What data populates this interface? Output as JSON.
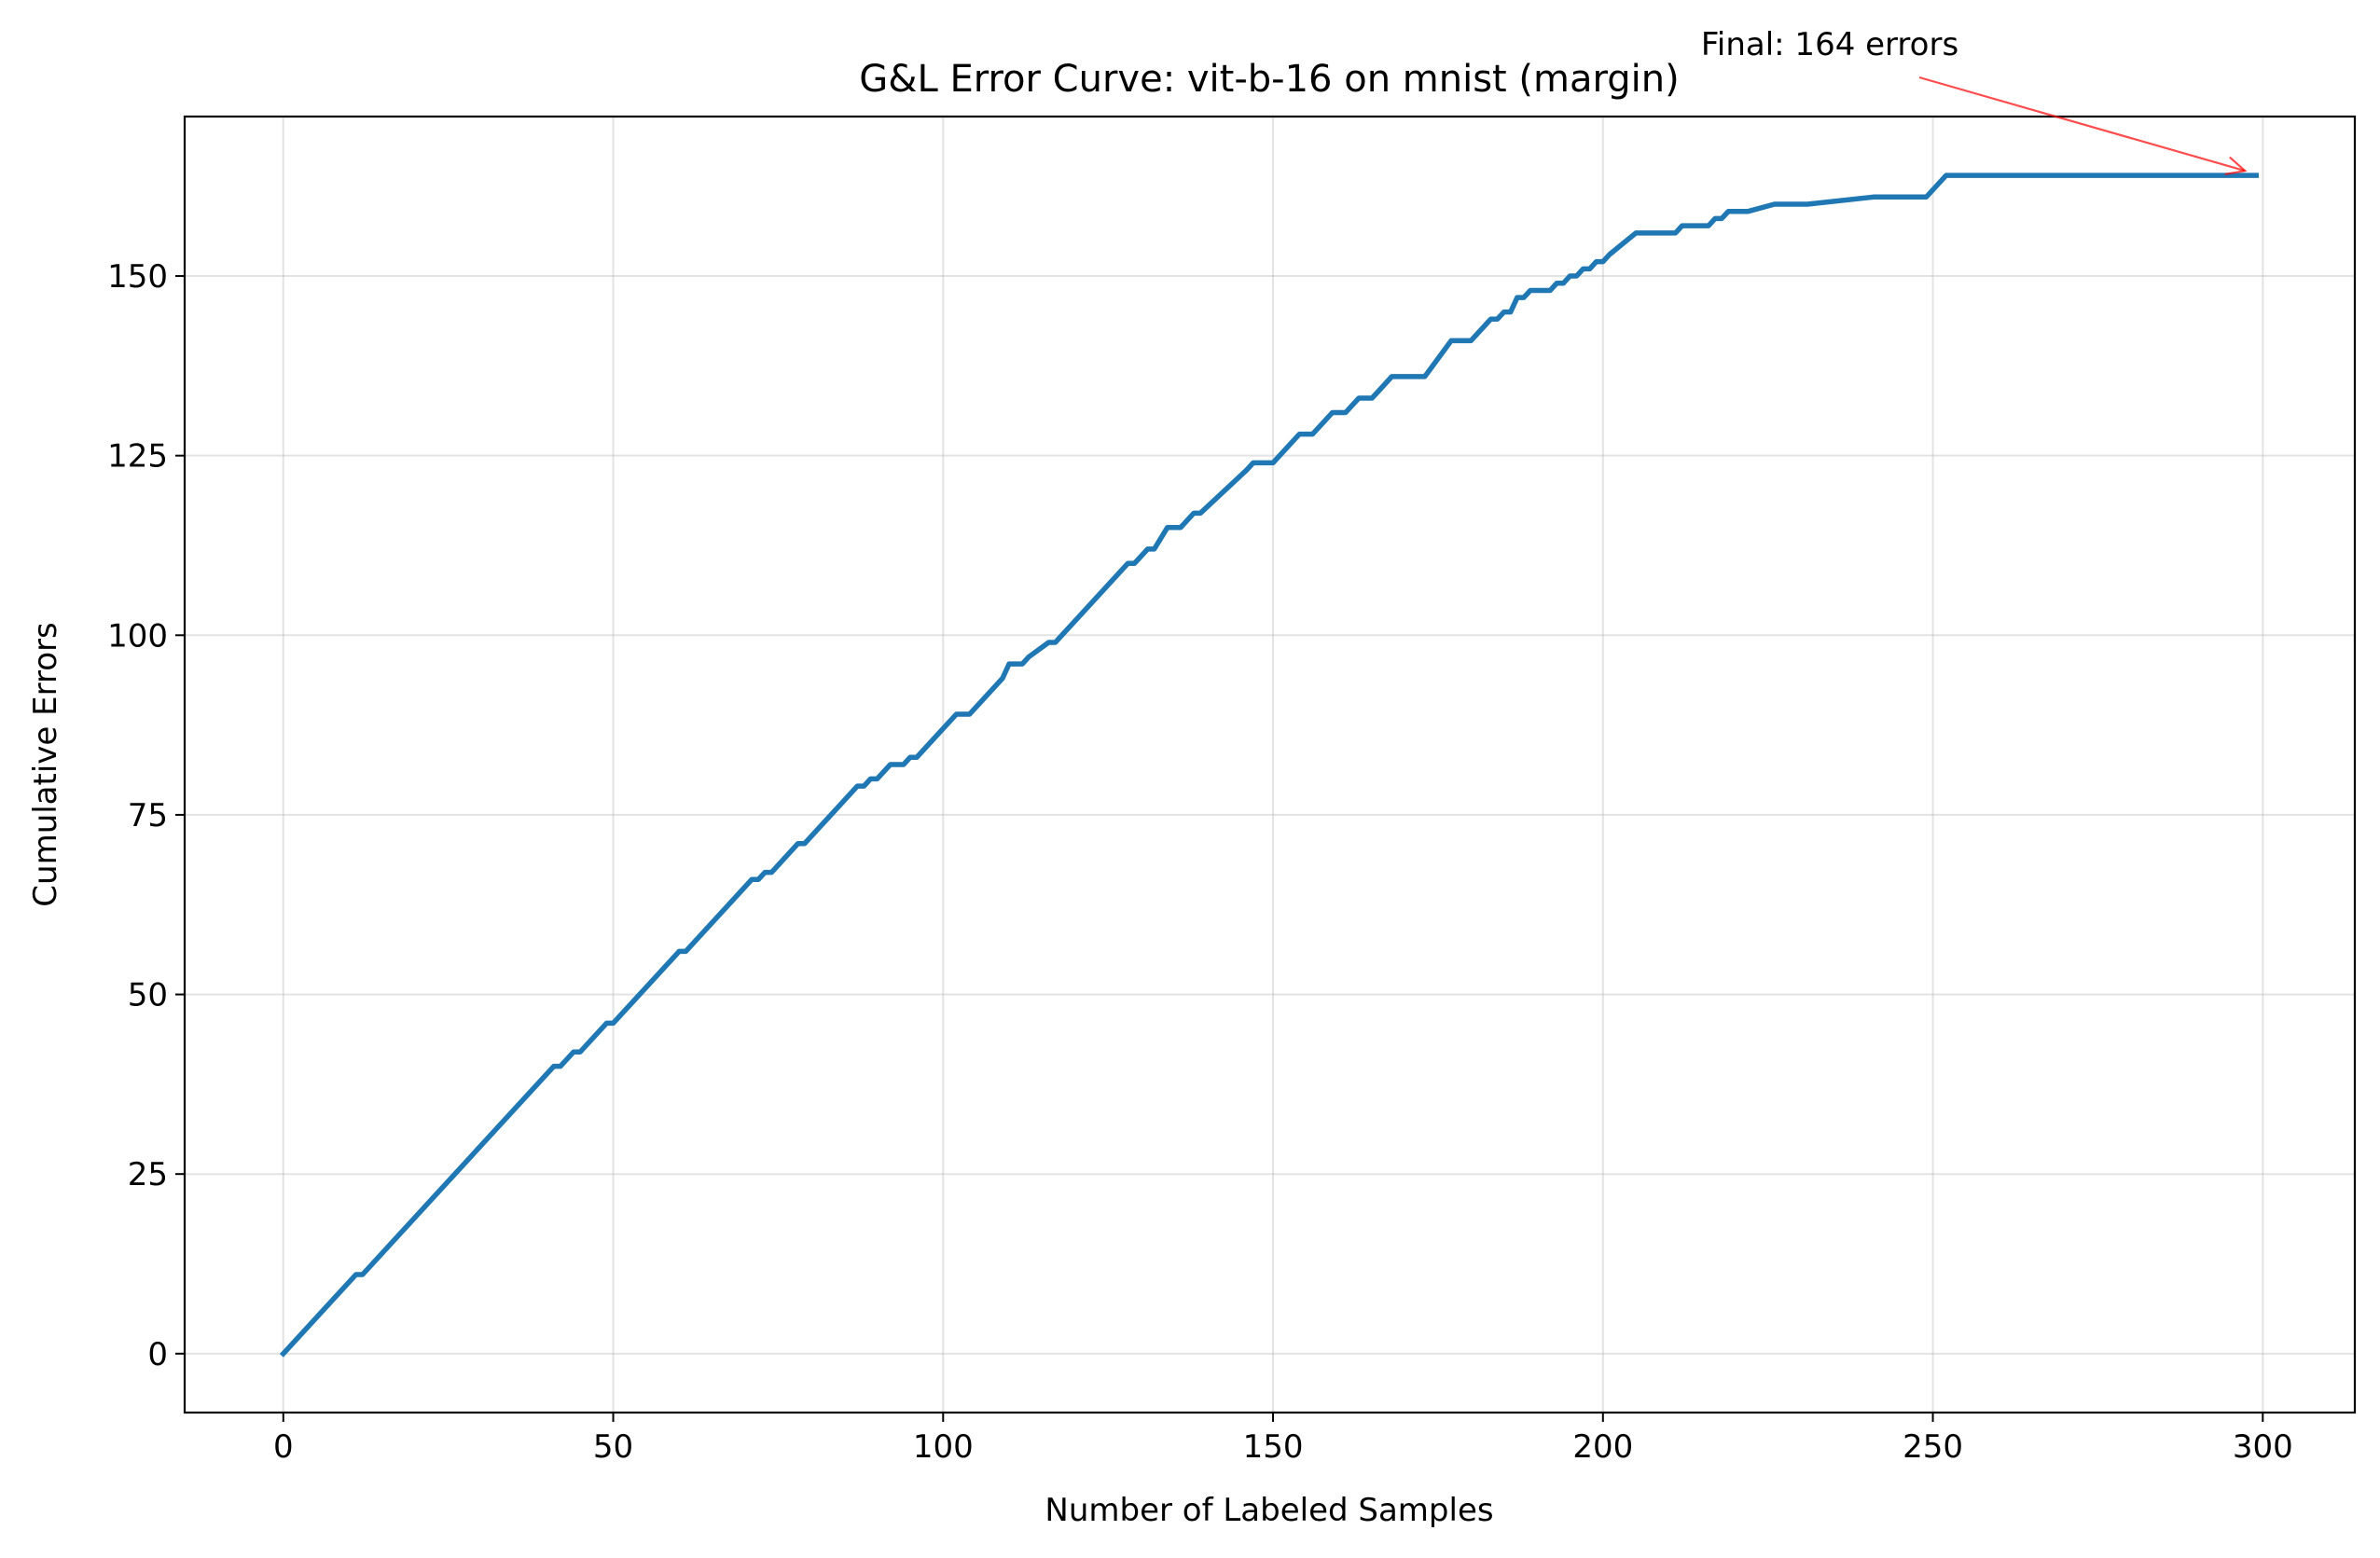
{
  "chart_data": {
    "type": "line",
    "title": "G&L Error Curve: vit-b-16 on mnist (margin)",
    "xlabel": "Number of Labeled Samples",
    "ylabel": "Cumulative Errors",
    "xlim": [
      -14.95,
      313.95
    ],
    "ylim": [
      -8.2,
      172.2
    ],
    "xticks": [
      0,
      50,
      100,
      150,
      200,
      250,
      300
    ],
    "yticks": [
      0,
      25,
      50,
      75,
      100,
      125,
      150
    ],
    "xtick_labels": [
      "0",
      "50",
      "100",
      "150",
      "200",
      "250",
      "300"
    ],
    "ytick_labels": [
      "0",
      "25",
      "50",
      "75",
      "100",
      "125",
      "150"
    ],
    "grid": true,
    "series": [
      {
        "color": "#1f77b4",
        "x": [
          0,
          11,
          12,
          41,
          42,
          44,
          45,
          49,
          50,
          60,
          61,
          71,
          72,
          73,
          74,
          78,
          79,
          87,
          88,
          89,
          90,
          92,
          94,
          95,
          96,
          102,
          104,
          109,
          110,
          112,
          113,
          116,
          117,
          128,
          129,
          131,
          132,
          134,
          136,
          138,
          139,
          146,
          147,
          150,
          154,
          156,
          159,
          161,
          163,
          165,
          166,
          168,
          169,
          171,
          173,
          177,
          178,
          180,
          183,
          184,
          185,
          186,
          187,
          188,
          189,
          190,
          192,
          193,
          194,
          195,
          196,
          197,
          198,
          199,
          200,
          201,
          205,
          211,
          212,
          213,
          215,
          216,
          217,
          218,
          219,
          220,
          221,
          222,
          226,
          227,
          231,
          241,
          242,
          249,
          252,
          299
        ],
        "y": [
          0,
          11,
          11,
          40,
          40,
          42,
          42,
          46,
          46,
          56,
          56,
          66,
          66,
          67,
          67,
          71,
          71,
          79,
          79,
          80,
          80,
          82,
          82,
          83,
          83,
          89,
          89,
          94,
          96,
          96,
          97,
          99,
          99,
          110,
          110,
          112,
          112,
          115,
          115,
          117,
          117,
          123,
          124,
          124,
          128,
          128,
          131,
          131,
          133,
          133,
          134,
          136,
          136,
          136,
          136,
          141,
          141,
          141,
          144,
          144,
          145,
          145,
          147,
          147,
          148,
          148,
          148,
          149,
          149,
          150,
          150,
          151,
          151,
          152,
          152,
          153,
          156,
          156,
          157,
          157,
          157,
          157,
          158,
          158,
          159,
          159,
          159,
          159,
          160,
          160,
          160,
          161,
          161,
          161,
          164,
          164
        ]
      }
    ],
    "annotations": [
      {
        "text": "Final: 164 errors",
        "color": "#ff0000",
        "arrow_to": [
          299,
          164
        ]
      }
    ]
  }
}
